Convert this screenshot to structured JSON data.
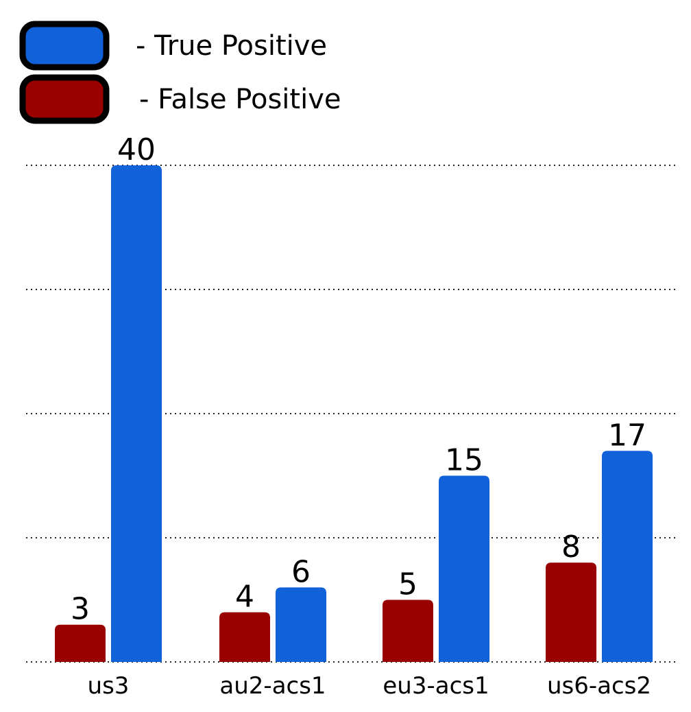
{
  "chart_data": {
    "type": "bar",
    "categories": [
      "us3",
      "au2-acs1",
      "eu3-acs1",
      "us6-acs2"
    ],
    "series": [
      {
        "name": "- False Positive",
        "color": "#990000",
        "values": [
          3,
          4,
          5,
          8
        ]
      },
      {
        "name": "- True Positive",
        "color": "#1161d9",
        "values": [
          40,
          6,
          15,
          17
        ]
      }
    ],
    "legend_order": [
      1,
      0
    ],
    "ylim": [
      0,
      40
    ],
    "gridlines_at": [
      0,
      10,
      20,
      30,
      40
    ],
    "grid": true,
    "legend_position": "top-left",
    "show_value_labels": true,
    "xlabel": "",
    "ylabel": "",
    "title": ""
  }
}
